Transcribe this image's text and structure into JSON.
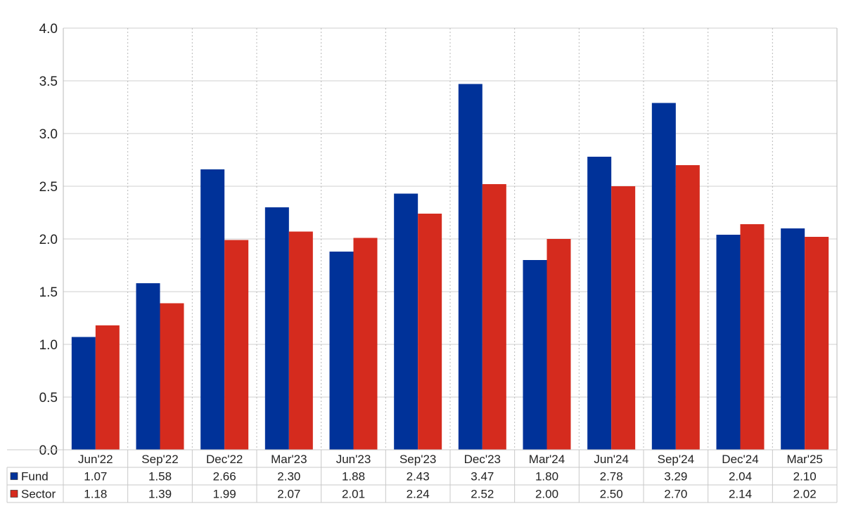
{
  "chart_data": {
    "type": "bar",
    "categories": [
      "Jun'22",
      "Sep'22",
      "Dec'22",
      "Mar'23",
      "Jun'23",
      "Sep'23",
      "Dec'23",
      "Mar'24",
      "Jun'24",
      "Sep'24",
      "Dec'24",
      "Mar'25"
    ],
    "series": [
      {
        "name": "Fund",
        "color": "#003299",
        "values": [
          1.07,
          1.58,
          2.66,
          2.3,
          1.88,
          2.43,
          3.47,
          1.8,
          2.78,
          3.29,
          2.04,
          2.1
        ],
        "labels": [
          "1.07",
          "1.58",
          "2.66",
          "2.30",
          "1.88",
          "2.43",
          "3.47",
          "1.80",
          "2.78",
          "3.29",
          "2.04",
          "2.10"
        ]
      },
      {
        "name": "Sector",
        "color": "#D52B1E",
        "values": [
          1.18,
          1.39,
          1.99,
          2.07,
          2.01,
          2.24,
          2.52,
          2.0,
          2.5,
          2.7,
          2.14,
          2.02
        ],
        "labels": [
          "1.18",
          "1.39",
          "1.99",
          "2.07",
          "2.01",
          "2.24",
          "2.52",
          "2.00",
          "2.50",
          "2.70",
          "2.14",
          "2.02"
        ]
      }
    ],
    "yticks": [
      "0.0",
      "0.5",
      "1.0",
      "1.5",
      "2.0",
      "2.5",
      "3.0",
      "3.5",
      "4.0"
    ],
    "ylim": [
      0,
      4.0
    ],
    "grid": true,
    "data_table": true
  }
}
